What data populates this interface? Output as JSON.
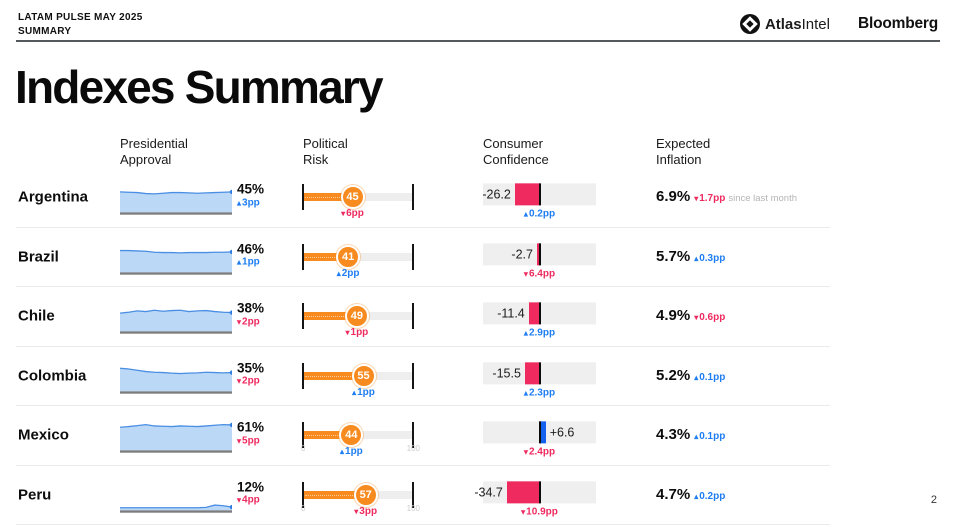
{
  "header": {
    "eyebrow_line1": "LATAM PULSE MAY 2025",
    "eyebrow_line2": "SUMMARY",
    "brand1_bold": "Atlas",
    "brand1_regular": "Intel",
    "brand2": "Bloomberg"
  },
  "title": "Indexes Summary",
  "page_number": "2",
  "columns": [
    {
      "line1": "Presidential",
      "line2": "Approval"
    },
    {
      "line1": "Political",
      "line2": "Risk"
    },
    {
      "line1": "Consumer",
      "line2": "Confidence"
    },
    {
      "line1": "Expected",
      "line2": "Inflation"
    }
  ],
  "colors": {
    "positive_blue": "#1e7df2",
    "negative_pink": "#ee2a5f",
    "risk_orange": "#f78b1f",
    "spark_line": "#4a8fe3",
    "spark_fill": "#bcd8f7",
    "spark_dot": "#2f7de1",
    "spark_base": "#7d7d7d",
    "cc_negative": "#ee2a5f",
    "cc_positive": "#1460ef",
    "track_gray": "#efefef"
  },
  "chart_data": {
    "type": "table",
    "title": "Indexes Summary",
    "metric_columns": [
      "Presidential Approval",
      "Political Risk",
      "Consumer Confidence",
      "Expected Inflation"
    ],
    "risk_axis": {
      "min": 0,
      "max": 100
    },
    "confidence_axis": {
      "zero_centered": true,
      "approx_halfspan": 60
    },
    "rows": [
      {
        "country": "Argentina",
        "approval": {
          "value": "45%",
          "delta": "3pp",
          "dir": "up",
          "spark": [
            0.62,
            0.61,
            0.6,
            0.57,
            0.56,
            0.58,
            0.6,
            0.6,
            0.59,
            0.58,
            0.59,
            0.6,
            0.61,
            0.62
          ]
        },
        "risk": {
          "value": 45,
          "delta": "6pp",
          "dir": "down",
          "show_axis": false
        },
        "confidence": {
          "value": -26.2,
          "label": "-26.2",
          "delta": "0.2pp",
          "dir": "up"
        },
        "inflation": {
          "value": "6.9%",
          "delta": "1.7pp",
          "dir": "down",
          "note": "since last month"
        }
      },
      {
        "country": "Brazil",
        "approval": {
          "value": "46%",
          "delta": "1pp",
          "dir": "up",
          "spark": [
            0.66,
            0.66,
            0.65,
            0.64,
            0.61,
            0.6,
            0.6,
            0.59,
            0.6,
            0.6,
            0.6,
            0.61,
            0.61,
            0.62
          ]
        },
        "risk": {
          "value": 41,
          "delta": "2pp",
          "dir": "up",
          "show_axis": false
        },
        "confidence": {
          "value": -2.7,
          "label": "-2.7",
          "delta": "6.4pp",
          "dir": "down"
        },
        "inflation": {
          "value": "5.7%",
          "delta": "0.3pp",
          "dir": "up",
          "note": ""
        }
      },
      {
        "country": "Chile",
        "approval": {
          "value": "38%",
          "delta": "2pp",
          "dir": "down",
          "spark": [
            0.55,
            0.58,
            0.62,
            0.6,
            0.64,
            0.61,
            0.63,
            0.64,
            0.6,
            0.62,
            0.63,
            0.6,
            0.58,
            0.57
          ]
        },
        "risk": {
          "value": 49,
          "delta": "1pp",
          "dir": "down",
          "show_axis": false
        },
        "confidence": {
          "value": -11.4,
          "label": "-11.4",
          "delta": "2.9pp",
          "dir": "up"
        },
        "inflation": {
          "value": "4.9%",
          "delta": "0.6pp",
          "dir": "down",
          "note": ""
        }
      },
      {
        "country": "Colombia",
        "approval": {
          "value": "35%",
          "delta": "2pp",
          "dir": "down",
          "spark": [
            0.7,
            0.68,
            0.64,
            0.6,
            0.58,
            0.57,
            0.55,
            0.54,
            0.55,
            0.56,
            0.58,
            0.57,
            0.56,
            0.57
          ]
        },
        "risk": {
          "value": 55,
          "delta": "1pp",
          "dir": "up",
          "show_axis": false
        },
        "confidence": {
          "value": -15.5,
          "label": "-15.5",
          "delta": "2.3pp",
          "dir": "up"
        },
        "inflation": {
          "value": "5.2%",
          "delta": "0.1pp",
          "dir": "up",
          "note": ""
        }
      },
      {
        "country": "Mexico",
        "approval": {
          "value": "61%",
          "delta": "5pp",
          "dir": "down",
          "spark": [
            0.7,
            0.72,
            0.75,
            0.78,
            0.74,
            0.73,
            0.72,
            0.74,
            0.73,
            0.72,
            0.74,
            0.76,
            0.78,
            0.77
          ]
        },
        "risk": {
          "value": 44,
          "delta": "1pp",
          "dir": "up",
          "show_axis": true
        },
        "confidence": {
          "value": 6.6,
          "label": "+6.6",
          "delta": "2.4pp",
          "dir": "down"
        },
        "inflation": {
          "value": "4.3%",
          "delta": "0.1pp",
          "dir": "up",
          "note": ""
        }
      },
      {
        "country": "Peru",
        "approval": {
          "value": "12%",
          "delta": "4pp",
          "dir": "down",
          "spark": [
            0.08,
            0.08,
            0.08,
            0.08,
            0.08,
            0.08,
            0.08,
            0.08,
            0.08,
            0.08,
            0.09,
            0.16,
            0.14,
            0.1
          ]
        },
        "risk": {
          "value": 57,
          "delta": "3pp",
          "dir": "down",
          "show_axis": true
        },
        "confidence": {
          "value": -34.7,
          "label": "-34.7",
          "delta": "10.9pp",
          "dir": "down"
        },
        "inflation": {
          "value": "4.7%",
          "delta": "0.2pp",
          "dir": "up",
          "note": ""
        }
      }
    ]
  }
}
